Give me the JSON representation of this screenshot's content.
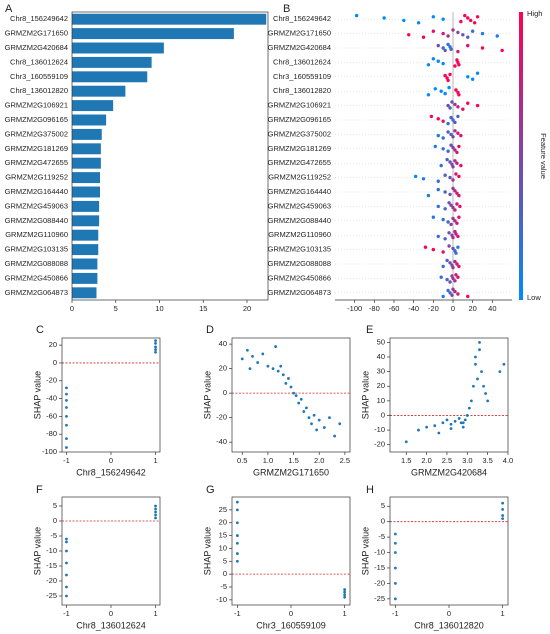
{
  "chart_data": [
    {
      "type": "bar",
      "orientation": "horizontal",
      "panel_label": "A",
      "color": "#1f77b4",
      "categories": [
        "Chr8_156249642",
        "GRMZM2G171650",
        "GRMZM2G420684",
        "Chr8_136012624",
        "Chr3_160559109",
        "Chr8_136012820",
        "GRMZM2G106921",
        "GRMZM2G096165",
        "GRMZM2G375002",
        "GRMZM2G181269",
        "GRMZM2G472655",
        "GRMZM2G119252",
        "GRMZM2G164440",
        "GRMZM2G459063",
        "GRMZM2G088440",
        "GRMZM2G110960",
        "GRMZM2G103135",
        "GRMZM2G088088",
        "GRMZM2G450866",
        "GRMZM2G064873"
      ],
      "values": [
        22.2,
        18.5,
        10.5,
        9.1,
        8.6,
        6.1,
        4.7,
        3.9,
        3.4,
        3.3,
        3.3,
        3.2,
        3.2,
        3.1,
        3.1,
        3.0,
        3.0,
        2.9,
        2.9,
        2.8
      ],
      "xlim": [
        0,
        22.4
      ],
      "xticks": [
        0,
        5,
        10,
        15,
        20
      ]
    },
    {
      "type": "beeswarm",
      "panel_label": "B",
      "low_color": "#008bfb",
      "high_color": "#ff0052",
      "colorbar_label": "Feature value",
      "colorbar_high": "High",
      "colorbar_low": "Low",
      "vline": 0,
      "categories": [
        "Chr8_156249642",
        "GRMZM2G171650",
        "GRMZM2G420684",
        "Chr8_136012624",
        "Chr3_160559109",
        "Chr8_136012820",
        "GRMZM2G106921",
        "GRMZM2G096165",
        "GRMZM2G375002",
        "GRMZM2G181269",
        "GRMZM2G472655",
        "GRMZM2G119252",
        "GRMZM2G164440",
        "GRMZM2G459063",
        "GRMZM2G088440",
        "GRMZM2G110960",
        "GRMZM2G103135",
        "GRMZM2G088088",
        "GRMZM2G450866",
        "GRMZM2G064873"
      ],
      "values": [
        [
          -98,
          -70,
          -50,
          -35,
          -20,
          -10,
          8,
          12,
          15,
          18,
          22,
          25
        ],
        [
          -45,
          -30,
          -20,
          -10,
          -5,
          0,
          5,
          10,
          15,
          20,
          30,
          45
        ],
        [
          -15,
          -10,
          -8,
          -5,
          -3,
          -2,
          5,
          15,
          30,
          50
        ],
        [
          -25,
          -20,
          -15,
          -10,
          2,
          4,
          5,
          6
        ],
        [
          -8,
          -6,
          -5,
          -3,
          15,
          20,
          25
        ],
        [
          -25,
          -18,
          -12,
          -8,
          -4,
          3,
          5,
          6
        ],
        [
          -5,
          -3,
          -1,
          2,
          5,
          10,
          15,
          25
        ],
        [
          -22,
          -15,
          -10,
          -5,
          -2,
          0,
          2,
          5
        ],
        [
          -15,
          -10,
          -5,
          -2,
          0,
          2,
          5,
          8
        ],
        [
          -18,
          -10,
          -5,
          -2,
          0,
          2,
          4,
          6
        ],
        [
          -12,
          -6,
          -3,
          -1,
          0,
          2,
          4,
          8
        ],
        [
          -38,
          -30,
          -15,
          -8,
          -3,
          0,
          3,
          6
        ],
        [
          -25,
          -15,
          -8,
          -3,
          0,
          2,
          4,
          6
        ],
        [
          -15,
          -8,
          -4,
          -2,
          0,
          2,
          4,
          7
        ],
        [
          -20,
          -10,
          -5,
          -2,
          0,
          2,
          4,
          6
        ],
        [
          -15,
          -8,
          -4,
          -1,
          0,
          2,
          3,
          5
        ],
        [
          -28,
          -20,
          -10,
          -4,
          0,
          2,
          3,
          5
        ],
        [
          -10,
          -6,
          -3,
          -1,
          0,
          2,
          4,
          6
        ],
        [
          -12,
          -6,
          -3,
          -1,
          0,
          2,
          3,
          5
        ],
        [
          -10,
          -5,
          -3,
          -1,
          0,
          2,
          5,
          15
        ]
      ],
      "feature_values": [
        [
          0,
          0,
          0,
          0,
          0,
          0,
          1,
          1,
          1,
          1,
          1,
          1
        ],
        [
          1,
          1,
          0.9,
          0.8,
          0.7,
          0.6,
          0.5,
          0.4,
          0.3,
          0.2,
          0.1,
          0.1
        ],
        [
          0.4,
          0.3,
          0.3,
          0.2,
          0.2,
          0.3,
          0.8,
          0.9,
          1,
          1
        ],
        [
          0,
          0,
          0,
          0,
          1,
          1,
          1,
          1
        ],
        [
          1,
          1,
          1,
          1,
          0,
          0,
          0
        ],
        [
          0,
          0,
          0,
          0,
          0,
          1,
          1,
          1
        ],
        [
          0.5,
          0.3,
          0.4,
          0.6,
          0.8,
          0.9,
          1,
          1
        ],
        [
          1,
          1,
          0.9,
          0.2,
          0.3,
          0.2,
          0.4,
          0.3
        ],
        [
          0.1,
          0.2,
          0.3,
          0.3,
          0.5,
          0.6,
          0.8,
          0.9
        ],
        [
          0.1,
          0.2,
          0.3,
          0.4,
          0.5,
          0.7,
          0.8,
          0.9
        ],
        [
          0.2,
          0.3,
          0.4,
          0.5,
          0.5,
          0.6,
          0.8,
          0.9
        ],
        [
          0,
          0.1,
          0.2,
          0.3,
          0.4,
          0.6,
          0.8,
          1
        ],
        [
          0.1,
          0.2,
          0.3,
          0.4,
          0.6,
          0.7,
          0.8,
          0.9
        ],
        [
          0.2,
          0.3,
          0.4,
          0.5,
          0.6,
          0.7,
          0.8,
          0.9
        ],
        [
          0.1,
          0.2,
          0.3,
          0.5,
          0.6,
          0.7,
          0.8,
          0.9
        ],
        [
          0.2,
          0.3,
          0.4,
          0.5,
          0.6,
          0.7,
          0.8,
          0.9
        ],
        [
          1,
          1,
          0.9,
          0.5,
          0.4,
          0.3,
          0.2,
          0.1
        ],
        [
          0.2,
          0.3,
          0.4,
          0.5,
          0.6,
          0.7,
          0.8,
          0.9
        ],
        [
          0.2,
          0.3,
          0.4,
          0.5,
          0.6,
          0.7,
          0.8,
          0.9
        ],
        [
          0.1,
          0.2,
          0.3,
          0.5,
          0.6,
          0.7,
          0.8,
          1
        ]
      ],
      "xlim": [
        -120,
        60
      ],
      "xticks": [
        -100,
        -80,
        -60,
        -40,
        -20,
        0,
        20,
        40
      ]
    },
    {
      "type": "scatter",
      "panel_label": "C",
      "color": "#1f77b4",
      "hline": 0,
      "hline_color": "#d62728",
      "x_label": "Chr8_156249642",
      "y_label": "SHAP value",
      "x": [
        -1,
        -1,
        -1,
        -1,
        -1,
        -1,
        -1,
        -1,
        1,
        1,
        1,
        1,
        1
      ],
      "y": [
        -95,
        -85,
        -70,
        -60,
        -50,
        -42,
        -35,
        -28,
        12,
        15,
        18,
        22,
        25
      ],
      "xlim": [
        -1.1,
        1.1
      ],
      "xticks": [
        -1,
        0,
        1
      ],
      "ylim": [
        -100,
        28
      ],
      "yticks": [
        -100,
        -80,
        -60,
        -40,
        -20,
        0,
        20
      ]
    },
    {
      "type": "scatter",
      "panel_label": "D",
      "color": "#1f77b4",
      "hline": 0,
      "hline_color": "#d62728",
      "x_label": "GRMZM2G171650",
      "y_label": "SHAP value",
      "x": [
        0.5,
        0.6,
        0.7,
        0.8,
        0.9,
        1.0,
        1.1,
        1.15,
        1.2,
        1.3,
        1.35,
        1.4,
        1.45,
        1.5,
        1.55,
        1.6,
        1.65,
        1.7,
        1.75,
        1.8,
        1.85,
        1.9,
        1.95,
        2.0,
        2.1,
        2.2,
        2.3,
        2.4,
        1.25,
        0.65
      ],
      "y": [
        28,
        35,
        30,
        25,
        32,
        22,
        20,
        38,
        18,
        15,
        8,
        12,
        5,
        0,
        -2,
        -8,
        -5,
        -15,
        -12,
        -20,
        -25,
        -18,
        -30,
        -22,
        -28,
        -20,
        -35,
        -25,
        22,
        20
      ],
      "xlim": [
        0.3,
        2.6
      ],
      "xticks": [
        0.5,
        {
          "value": 1,
          "label": "1.0"
        },
        1.5,
        {
          "value": 2,
          "label": "2.0"
        },
        2.5
      ],
      "ylim": [
        -48,
        45
      ],
      "yticks": [
        -40,
        -20,
        0,
        20,
        40
      ]
    },
    {
      "type": "scatter",
      "panel_label": "E",
      "color": "#1f77b4",
      "hline": 0,
      "hline_color": "#d62728",
      "x_label": "GRMZM2G420684",
      "y_label": "SHAP value",
      "x": [
        1.5,
        1.8,
        2.0,
        2.2,
        2.4,
        2.5,
        2.6,
        2.7,
        2.8,
        2.85,
        2.9,
        2.95,
        3.0,
        3.05,
        3.1,
        3.15,
        3.2,
        3.25,
        3.3,
        3.35,
        3.4,
        3.45,
        3.5,
        2.3,
        2.6,
        2.9,
        3.2,
        3.3,
        3.9,
        3.8
      ],
      "y": [
        -18,
        -10,
        -8,
        -7,
        -5,
        -3,
        -6,
        -4,
        -2,
        -5,
        -8,
        -3,
        0,
        5,
        10,
        20,
        35,
        25,
        45,
        30,
        20,
        15,
        10,
        -12,
        -9,
        -5,
        40,
        50,
        35,
        30
      ],
      "xlim": [
        1.1,
        4.0
      ],
      "xticks": [
        1.5,
        {
          "value": 2,
          "label": "2.0"
        },
        2.5,
        {
          "value": 3,
          "label": "3.0"
        },
        3.5,
        {
          "value": 4,
          "label": "4.0"
        }
      ],
      "ylim": [
        -25,
        53
      ],
      "yticks": [
        -20,
        -10,
        0,
        10,
        20,
        30,
        40,
        50
      ]
    },
    {
      "type": "scatter",
      "panel_label": "F",
      "color": "#1f77b4",
      "hline": 0,
      "hline_color": "#d62728",
      "x_label": "Chr8_136012624",
      "y_label": "SHAP value",
      "x": [
        -1,
        -1,
        -1,
        -1,
        -1,
        -1,
        -1,
        1,
        1,
        1,
        1,
        1
      ],
      "y": [
        -25,
        -22,
        -18,
        -14,
        -10,
        -7,
        -6,
        1,
        2,
        3,
        4,
        5
      ],
      "xlim": [
        -1.1,
        1.1
      ],
      "xticks": [
        -1,
        0,
        1
      ],
      "ylim": [
        -28,
        8
      ],
      "yticks": [
        -25,
        -20,
        -15,
        -10,
        -5,
        0,
        5
      ]
    },
    {
      "type": "scatter",
      "panel_label": "G",
      "color": "#1f77b4",
      "hline": 0,
      "hline_color": "#d62728",
      "x_label": "Chr3_160559109",
      "y_label": "SHAP value",
      "x": [
        -1,
        -1,
        -1,
        -1,
        -1,
        -1,
        -1,
        1,
        1,
        1,
        1
      ],
      "y": [
        5,
        8,
        12,
        15,
        20,
        25,
        28,
        -9,
        -8,
        -7,
        -6
      ],
      "xlim": [
        -1.1,
        1.1
      ],
      "xticks": [
        -1,
        0,
        1
      ],
      "ylim": [
        -12,
        30
      ],
      "yticks": [
        -10,
        -5,
        0,
        5,
        10,
        15,
        20,
        25
      ]
    },
    {
      "type": "scatter",
      "panel_label": "H",
      "color": "#1f77b4",
      "hline": 0,
      "hline_color": "#d62728",
      "x_label": "Chr8_136012820",
      "y_label": "SHAP value",
      "x": [
        -1,
        -1,
        -1,
        -1,
        -1,
        -1,
        1,
        1,
        1,
        1
      ],
      "y": [
        -25,
        -20,
        -15,
        -10,
        -7,
        -4,
        1,
        2,
        4,
        6
      ],
      "xlim": [
        -1.1,
        1.1
      ],
      "xticks": [
        -1,
        0,
        1
      ],
      "ylim": [
        -27,
        8
      ],
      "yticks": [
        -25,
        -20,
        -15,
        -10,
        -5,
        0,
        5
      ]
    }
  ]
}
